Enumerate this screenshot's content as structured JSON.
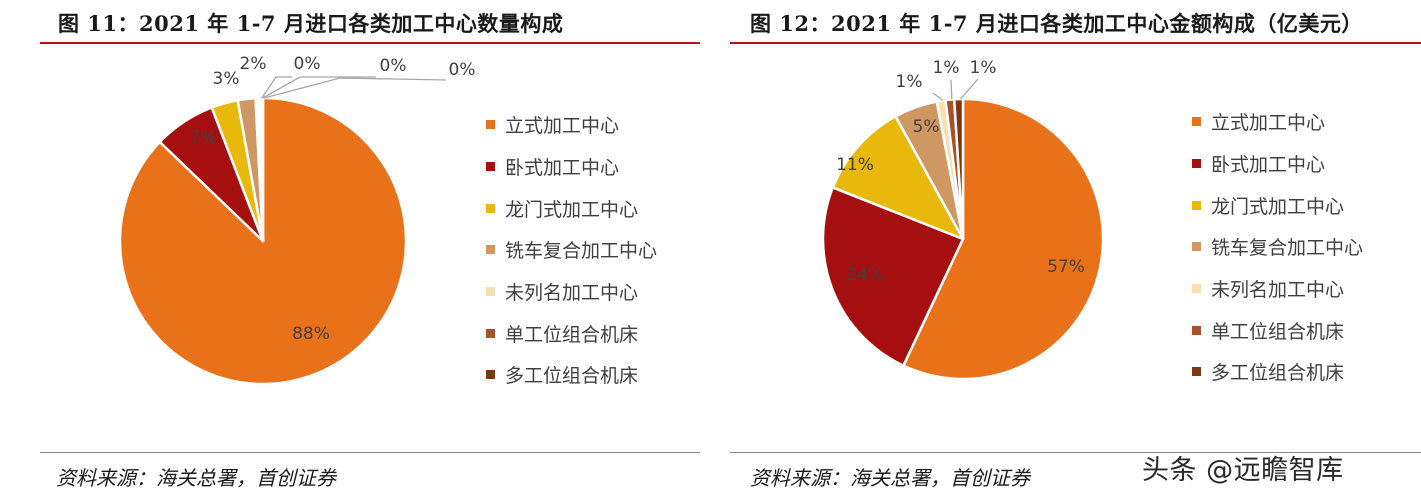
{
  "figures": [
    {
      "title": "图 11：2021 年 1-7 月进口各类加工中心数量构成",
      "source": "资料来源：海关总署，首创证券"
    },
    {
      "title": "图 12：2021 年 1-7 月进口各类加工中心金额构成（亿美元）",
      "source": "资料来源：海关总署，首创证券"
    }
  ],
  "watermark": "头条 @远瞻智库",
  "chart_data": [
    {
      "type": "pie",
      "title": "",
      "categories": [
        "立式加工中心",
        "卧式加工中心",
        "龙门式加工中心",
        "铣车复合加工中心",
        "未列名加工中心",
        "单工位组合机床",
        "多工位组合机床"
      ],
      "values": [
        88,
        7,
        3,
        2,
        0,
        0,
        0
      ],
      "labels": [
        "88%",
        "7%",
        "3%",
        "2%",
        "0%",
        "0%",
        "0%"
      ],
      "colors": [
        "#E8711A",
        "#A50F0F",
        "#E8B90C",
        "#CF9863",
        "#F7DFB0",
        "#A9522A",
        "#7A3810"
      ],
      "legend": "right"
    },
    {
      "type": "pie",
      "title": "",
      "categories": [
        "立式加工中心",
        "卧式加工中心",
        "龙门式加工中心",
        "铣车复合加工中心",
        "未列名加工中心",
        "单工位组合机床",
        "多工位组合机床"
      ],
      "values": [
        57,
        24,
        11,
        5,
        1,
        1,
        1
      ],
      "labels": [
        "57%",
        "24%",
        "11%",
        "5%",
        "1%",
        "1%",
        "1%"
      ],
      "colors": [
        "#E8711A",
        "#A50F0F",
        "#E8B90C",
        "#CF9863",
        "#F7DFB0",
        "#A9522A",
        "#7A3810"
      ],
      "legend": "right"
    }
  ]
}
